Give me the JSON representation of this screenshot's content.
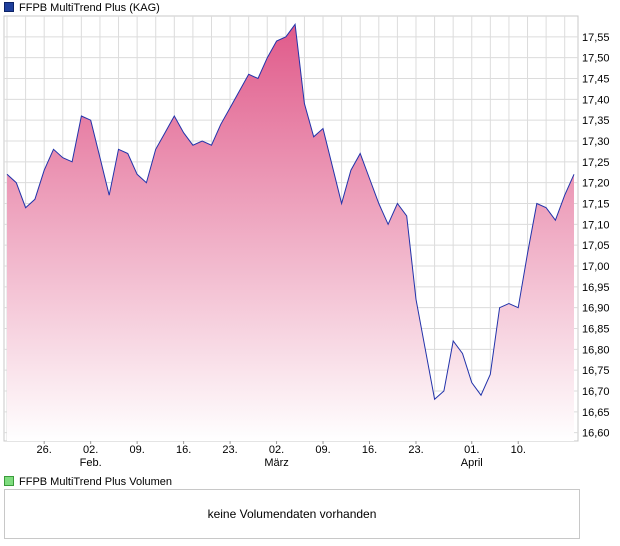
{
  "chart_data": {
    "type": "area",
    "title": "FFPB MultiTrend Plus (KAG)",
    "y_ticks": [
      "17,55",
      "17,50",
      "17,45",
      "17,40",
      "17,35",
      "17,30",
      "17,25",
      "17,20",
      "17,15",
      "17,10",
      "17,05",
      "17,00",
      "16,95",
      "16,90",
      "16,85",
      "16,80",
      "16,75",
      "16,70",
      "16,65",
      "16,60"
    ],
    "ylim": [
      16.58,
      17.6
    ],
    "x_ticks": [
      {
        "day": "26.",
        "month": "",
        "index": 4
      },
      {
        "day": "02.",
        "month": "Feb.",
        "index": 9
      },
      {
        "day": "09.",
        "month": "",
        "index": 14
      },
      {
        "day": "16.",
        "month": "",
        "index": 19
      },
      {
        "day": "23.",
        "month": "",
        "index": 24
      },
      {
        "day": "02.",
        "month": "März",
        "index": 29
      },
      {
        "day": "09.",
        "month": "",
        "index": 34
      },
      {
        "day": "16.",
        "month": "",
        "index": 39
      },
      {
        "day": "23.",
        "month": "",
        "index": 44
      },
      {
        "day": "01.",
        "month": "April",
        "index": 50
      },
      {
        "day": "10.",
        "month": "",
        "index": 55
      }
    ],
    "series": [
      {
        "values": [
          17.22,
          17.2,
          17.14,
          17.16,
          17.23,
          17.28,
          17.26,
          17.25,
          17.36,
          17.35,
          17.26,
          17.17,
          17.28,
          17.27,
          17.22,
          17.2,
          17.28,
          17.32,
          17.36,
          17.32,
          17.29,
          17.3,
          17.29,
          17.34,
          17.38,
          17.42,
          17.46,
          17.45,
          17.5,
          17.54,
          17.55,
          17.58,
          17.39,
          17.31,
          17.33,
          17.24,
          17.15,
          17.23,
          17.27,
          17.21,
          17.15,
          17.1,
          17.15,
          17.12,
          16.92,
          16.8,
          16.68,
          16.7,
          16.82,
          16.79,
          16.72,
          16.69,
          16.74,
          16.9,
          16.91,
          16.9,
          17.03,
          17.15,
          17.14,
          17.11,
          17.17,
          17.22
        ]
      }
    ],
    "grid": true,
    "colors": {
      "line": "#2233aa",
      "fill_top": "#e05a8a",
      "fill_bottom": "#ffffff",
      "grid": "#d8d8d8"
    }
  },
  "volume": {
    "legend_label": "FFPB MultiTrend Plus Volumen",
    "message": "keine Volumendaten vorhanden"
  }
}
